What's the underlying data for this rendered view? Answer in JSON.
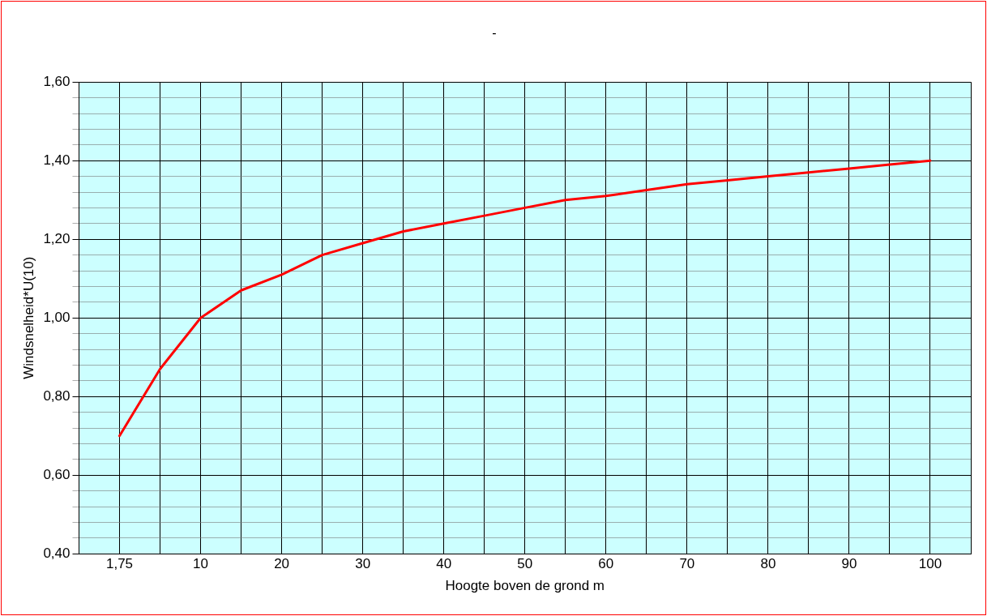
{
  "chart_data": {
    "type": "line",
    "title": "-",
    "xlabel": "Hoogte boven de grond m",
    "ylabel": "Windsnelheid*U(10)",
    "categories": [
      "1,75",
      null,
      "10",
      null,
      "20",
      null,
      "30",
      null,
      "40",
      null,
      "50",
      null,
      "60",
      null,
      "70",
      null,
      "80",
      null,
      "90",
      null,
      "100"
    ],
    "series": [
      {
        "color": "#ff0000",
        "values": [
          0.7,
          0.87,
          1.0,
          1.07,
          1.11,
          1.16,
          1.19,
          1.22,
          1.24,
          1.26,
          1.28,
          1.3,
          1.31,
          1.325,
          1.34,
          1.35,
          1.36,
          1.37,
          1.38,
          1.39,
          1.4
        ]
      }
    ],
    "ylim": [
      0.4,
      1.6
    ],
    "yticks": [
      {
        "value": 0.4,
        "label": "0,40"
      },
      {
        "value": 0.44,
        "label": null
      },
      {
        "value": 0.48,
        "label": null
      },
      {
        "value": 0.52,
        "label": null
      },
      {
        "value": 0.56,
        "label": null
      },
      {
        "value": 0.6,
        "label": "0,60"
      },
      {
        "value": 0.64,
        "label": null
      },
      {
        "value": 0.68,
        "label": null
      },
      {
        "value": 0.72,
        "label": null
      },
      {
        "value": 0.76,
        "label": null
      },
      {
        "value": 0.8,
        "label": "0,80"
      },
      {
        "value": 0.84,
        "label": null
      },
      {
        "value": 0.88,
        "label": null
      },
      {
        "value": 0.92,
        "label": null
      },
      {
        "value": 0.96,
        "label": null
      },
      {
        "value": 1.0,
        "label": "1,00"
      },
      {
        "value": 1.04,
        "label": null
      },
      {
        "value": 1.08,
        "label": null
      },
      {
        "value": 1.12,
        "label": null
      },
      {
        "value": 1.16,
        "label": null
      },
      {
        "value": 1.2,
        "label": "1,20"
      },
      {
        "value": 1.24,
        "label": null
      },
      {
        "value": 1.28,
        "label": null
      },
      {
        "value": 1.32,
        "label": null
      },
      {
        "value": 1.36,
        "label": null
      },
      {
        "value": 1.4,
        "label": "1,40"
      },
      {
        "value": 1.44,
        "label": null
      },
      {
        "value": 1.48,
        "label": null
      },
      {
        "value": 1.52,
        "label": null
      },
      {
        "value": 1.56,
        "label": null
      },
      {
        "value": 1.6,
        "label": "1,60"
      }
    ],
    "grid": true,
    "legend": false,
    "marker": "none",
    "line_style": "solid"
  }
}
